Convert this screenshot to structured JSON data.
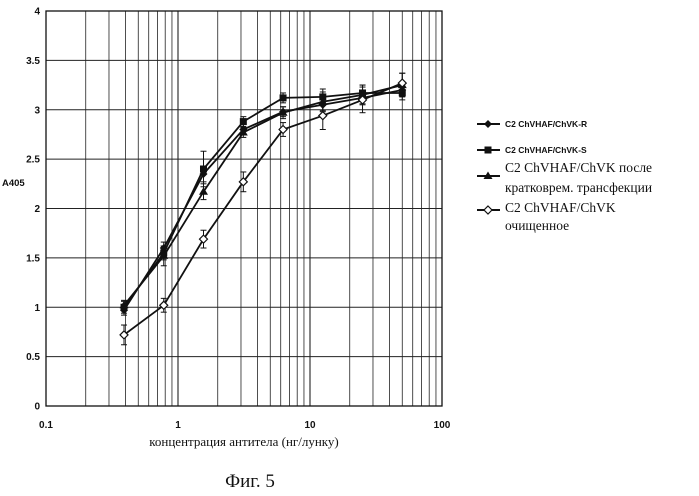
{
  "chart_data": {
    "type": "line",
    "x_scale": "log",
    "xlim": [
      0.1,
      100
    ],
    "ylim": [
      0,
      4
    ],
    "y_ticks": [
      "0",
      "0.5",
      "1",
      "1.5",
      "2",
      "2.5",
      "3",
      "3.5",
      "4"
    ],
    "x_ticks": [
      "0.1",
      "1",
      "10",
      "100"
    ],
    "ylabel": "A405",
    "xlabel": "концентрация антитела (нг/лунку)",
    "grid": true,
    "legend_position": "right",
    "x": [
      0.39,
      0.78,
      1.56,
      3.125,
      6.25,
      12.5,
      25,
      50
    ],
    "series": [
      {
        "name": "C2 ChVHAF/ChVK-R",
        "marker": "diamond",
        "values": [
          0.97,
          1.6,
          2.35,
          2.8,
          2.98,
          3.05,
          3.12,
          3.2
        ],
        "errors": [
          0.05,
          0.06,
          0.08,
          0.05,
          0.05,
          0.06,
          0.06,
          0.06
        ]
      },
      {
        "name": "C2 ChVHAF/ChVK-S",
        "marker": "square",
        "values": [
          1.0,
          1.55,
          2.4,
          2.88,
          3.12,
          3.13,
          3.17,
          3.17
        ],
        "errors": [
          0.06,
          0.07,
          0.18,
          0.05,
          0.05,
          0.08,
          0.08,
          0.07
        ]
      },
      {
        "name": "C2 ChVHAF/ChVK после кратковрем. трансфекции",
        "marker": "triangle",
        "values": [
          1.02,
          1.52,
          2.17,
          2.77,
          2.97,
          3.08,
          3.15,
          3.25
        ],
        "errors": [
          0.05,
          0.1,
          0.08,
          0.05,
          0.06,
          0.1,
          0.1,
          0.12
        ]
      },
      {
        "name": "C2 ChVHAF/ChVK очищенное",
        "marker": "diamond-open",
        "values": [
          0.72,
          1.02,
          1.69,
          2.27,
          2.8,
          2.94,
          3.1,
          3.27
        ],
        "errors": [
          0.1,
          0.07,
          0.09,
          0.1,
          0.07,
          0.14,
          0.13,
          0.1
        ]
      }
    ]
  },
  "legend_lines": {
    "s1": "C2 ChVHAF/ChVK-R",
    "s2": "C2 ChVHAF/ChVK-S",
    "s3_line1": "C2 ChVHAF/ChVK после",
    "s3_line2": "кратковрем. трансфекции",
    "s4_line1": "C2 ChVHAF/ChVK",
    "s4_line2": "очищенное"
  },
  "caption": "Фиг. 5"
}
